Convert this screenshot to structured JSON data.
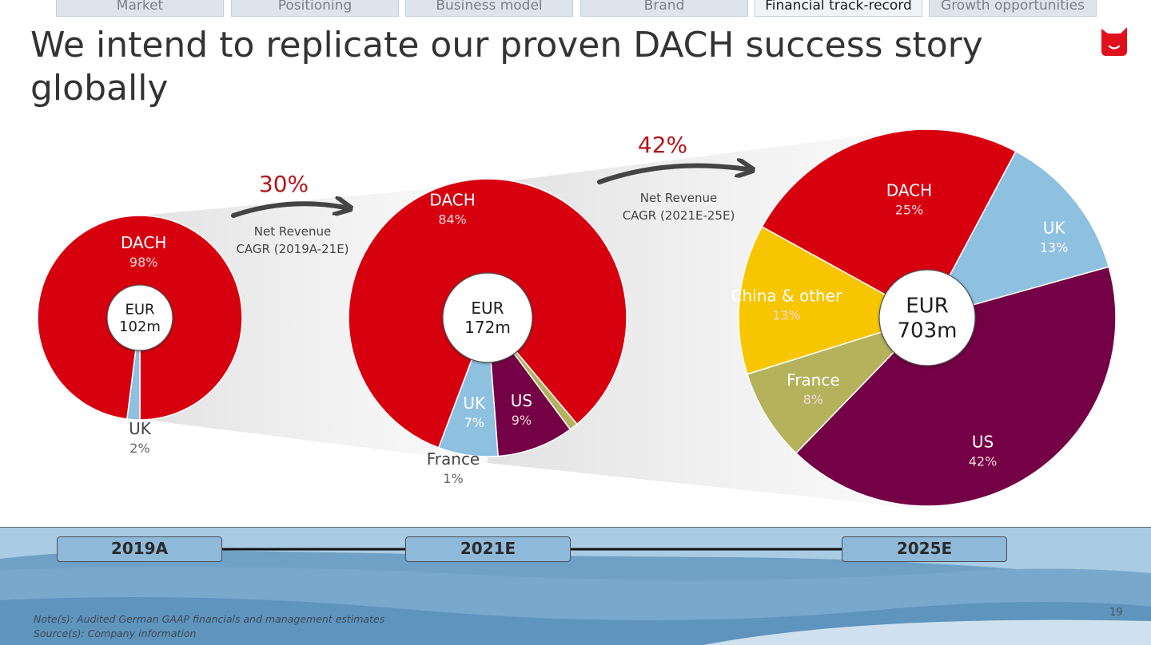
{
  "nav": {
    "tabs": [
      {
        "label": "Market",
        "active": false
      },
      {
        "label": "Positioning",
        "active": false
      },
      {
        "label": "Business model",
        "active": false
      },
      {
        "label": "Brand",
        "active": false
      },
      {
        "label": "Financial track-record",
        "active": true
      },
      {
        "label": "Growth opportunities",
        "active": false
      }
    ]
  },
  "title": "We intend to replicate our proven DACH success story globally",
  "colors": {
    "dach": "#d7000f",
    "uk": "#8ec0e0",
    "us": "#740045",
    "france": "#b4b35c",
    "china_other": "#f8c600",
    "logo": "#e0101d",
    "arrow": "#444444",
    "cagr_text": "#b5141c"
  },
  "chart_data": [
    {
      "type": "pie",
      "period": "2019A",
      "center_label": [
        "EUR",
        "102m"
      ],
      "slices": [
        {
          "label": "DACH",
          "value": 98,
          "value_label": "98%",
          "color": "#d7000f"
        },
        {
          "label": "UK",
          "value": 2,
          "value_label": "2%",
          "color": "#8ec0e0"
        }
      ]
    },
    {
      "type": "pie",
      "period": "2021E",
      "center_label": [
        "EUR",
        "172m"
      ],
      "slices": [
        {
          "label": "DACH",
          "value": 84,
          "value_label": "84%",
          "color": "#d7000f"
        },
        {
          "label": "UK",
          "value": 7,
          "value_label": "7%",
          "color": "#8ec0e0"
        },
        {
          "label": "US",
          "value": 9,
          "value_label": "9%",
          "color": "#740045"
        },
        {
          "label": "France",
          "value": 1,
          "value_label": "1%",
          "color": "#b4b35c"
        }
      ]
    },
    {
      "type": "pie",
      "period": "2025E",
      "center_label": [
        "EUR",
        "703m"
      ],
      "slices": [
        {
          "label": "UK",
          "value": 13,
          "value_label": "13%",
          "color": "#8ec0e0"
        },
        {
          "label": "US",
          "value": 42,
          "value_label": "42%",
          "color": "#740045"
        },
        {
          "label": "France",
          "value": 8,
          "value_label": "8%",
          "color": "#b4b35c"
        },
        {
          "label": "China & other",
          "value": 13,
          "value_label": "13%",
          "color": "#f8c600"
        },
        {
          "label": "DACH",
          "value": 25,
          "value_label": "25%",
          "color": "#d7000f"
        }
      ]
    }
  ],
  "cagr": [
    {
      "value": "30%",
      "label_line1": "Net Revenue",
      "label_line2": "CAGR (2019A-21E)"
    },
    {
      "value": "42%",
      "label_line1": "Net Revenue",
      "label_line2": "CAGR (2021E-25E)"
    }
  ],
  "timeline": {
    "years": [
      "2019A",
      "2021E",
      "2025E"
    ]
  },
  "footer": {
    "note": "Note(s): Audited German GAAP financials and management estimates",
    "source": "Source(s): Company information",
    "page_number": "19"
  }
}
